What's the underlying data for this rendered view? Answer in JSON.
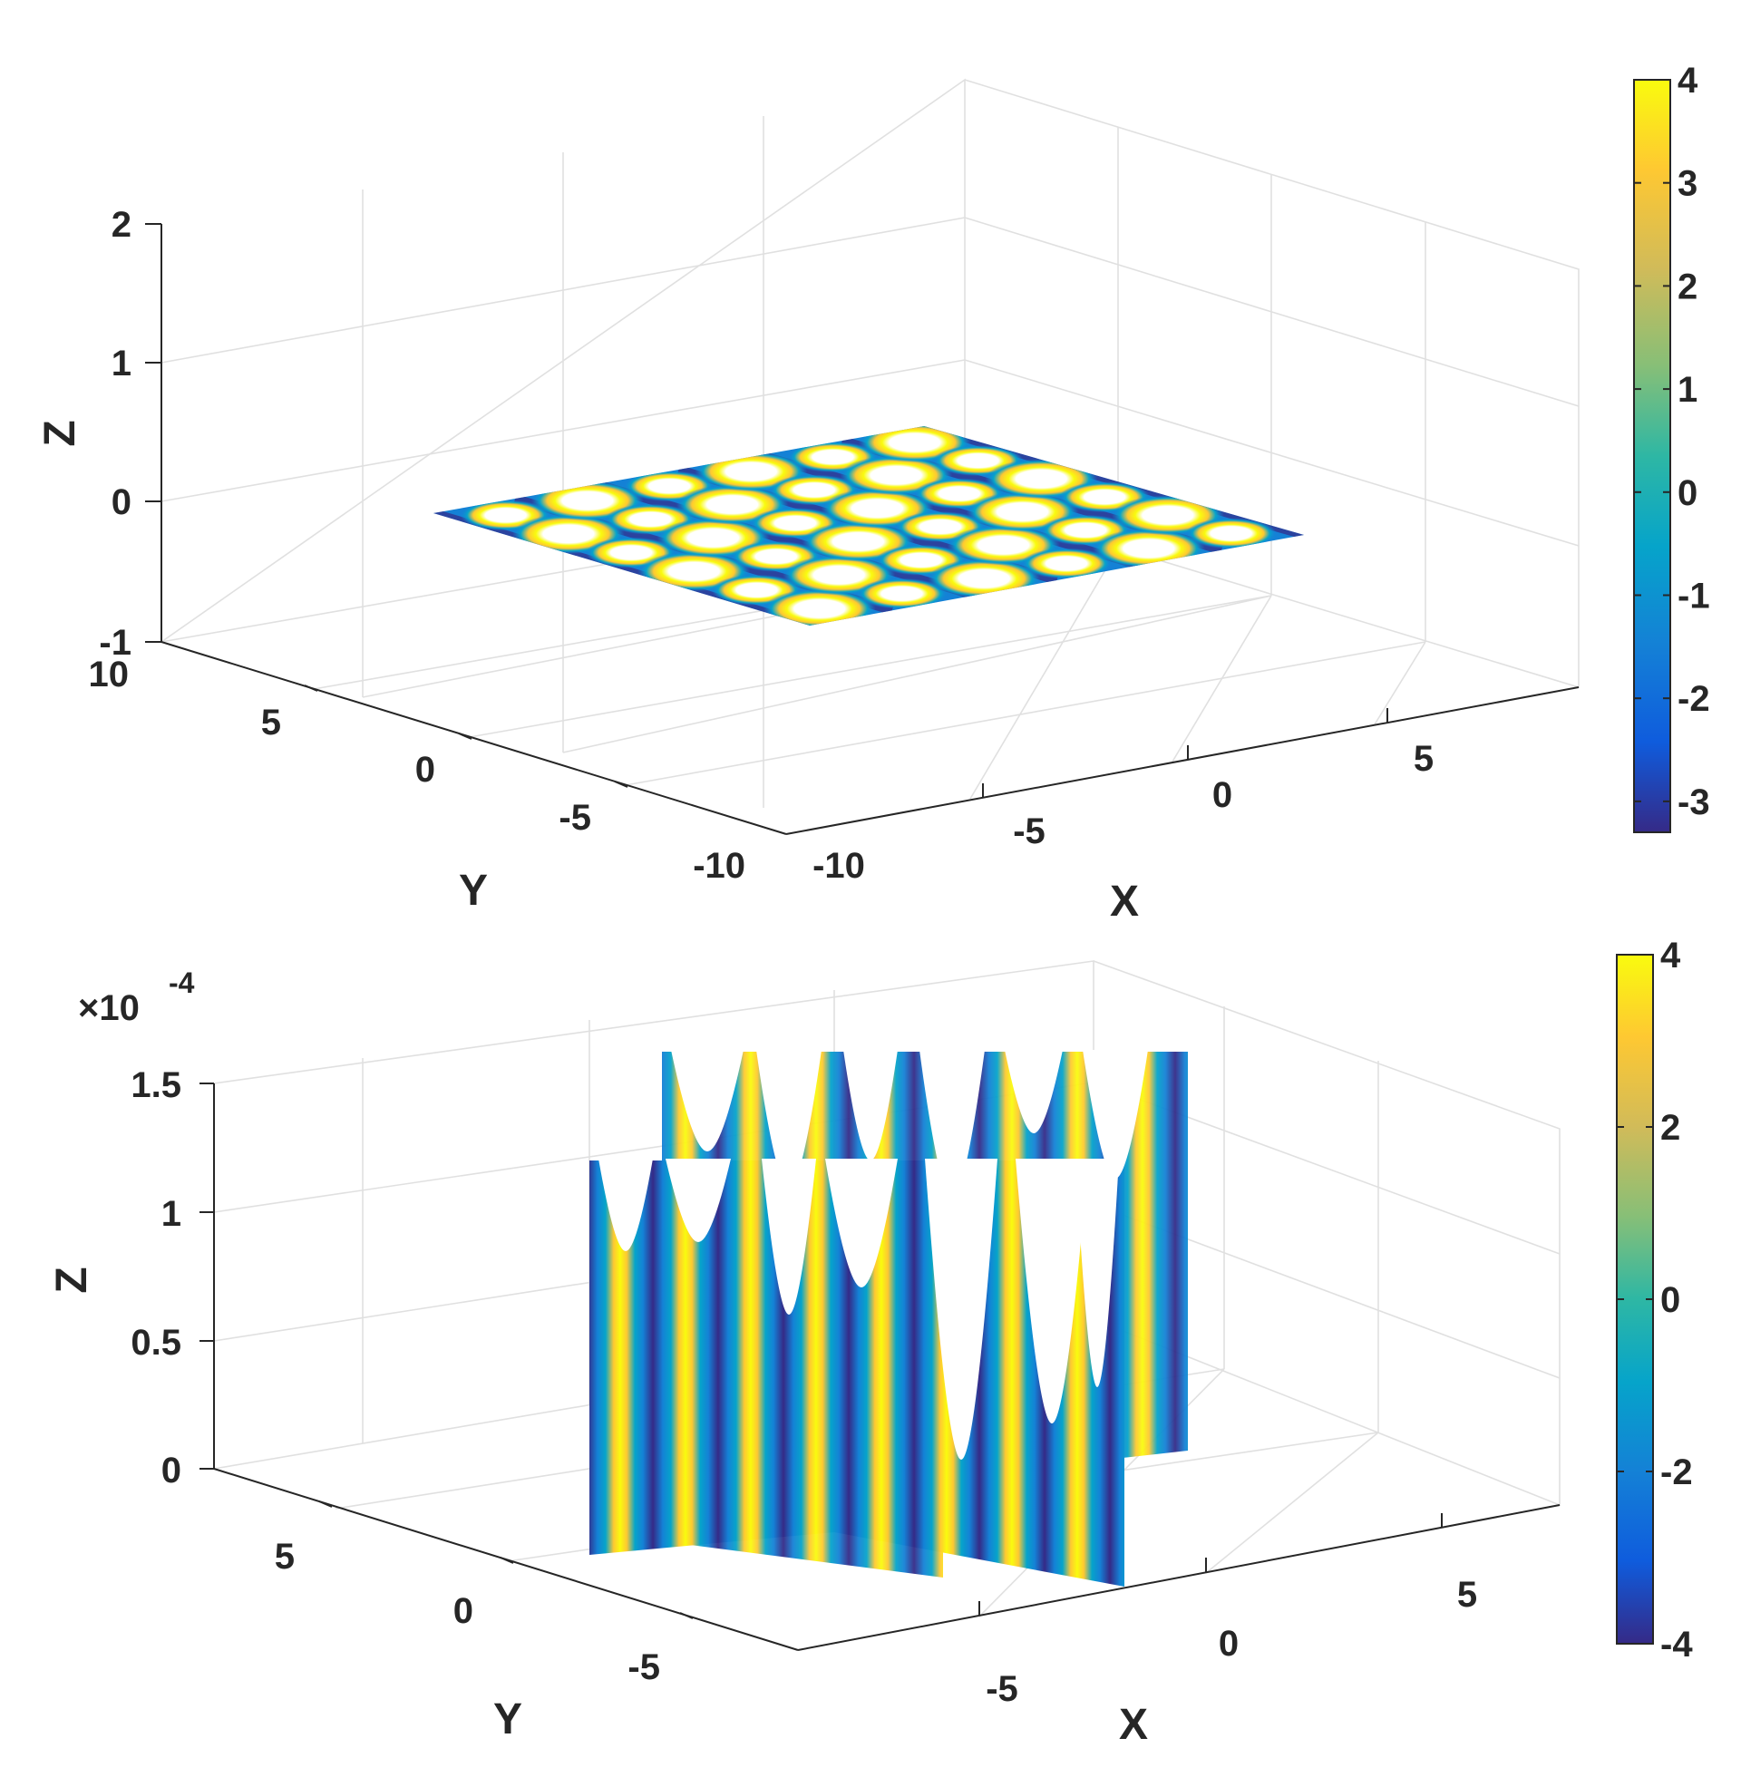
{
  "chart_data": [
    {
      "type": "surface3d",
      "xlabel": "X",
      "ylabel": "Y",
      "zlabel": "Z",
      "x_ticks": [
        -10,
        -5,
        0,
        5
      ],
      "y_ticks": [
        10,
        5,
        0,
        -5,
        -10
      ],
      "z_ticks": [
        -1,
        0,
        1,
        2
      ],
      "xlim": [
        -10,
        10
      ],
      "ylim": [
        -10,
        10
      ],
      "zlim": [
        -1,
        2
      ],
      "grid": true,
      "surface": {
        "z_plane": 0,
        "x_range": [
          -8,
          8
        ],
        "y_range": [
          -8,
          8
        ],
        "pattern": "periodic cells"
      },
      "colorbar": {
        "min": -3.3,
        "max": 4,
        "ticks": [
          4,
          3,
          2,
          1,
          0,
          -1,
          -2,
          -3
        ]
      }
    },
    {
      "type": "surface3d",
      "xlabel": "X",
      "ylabel": "Y",
      "zlabel": "Z",
      "z_exponent_label": "×10",
      "z_exponent": "-4",
      "x_ticks": [
        -5,
        0,
        5
      ],
      "y_ticks": [
        5,
        0,
        -5
      ],
      "z_ticks": [
        "0",
        "0.5",
        "1",
        "1.5"
      ],
      "xlim": [
        -8,
        8
      ],
      "ylim": [
        -8,
        8
      ],
      "zlim": [
        0,
        1.5
      ],
      "grid": true,
      "surface": {
        "walls": 2,
        "z_range": [
          0,
          1.5
        ],
        "pattern": "U-shaped vertical sheets"
      },
      "colorbar": {
        "min": -4,
        "max": 4,
        "ticks": [
          4,
          2,
          0,
          -2,
          -4
        ]
      }
    }
  ]
}
